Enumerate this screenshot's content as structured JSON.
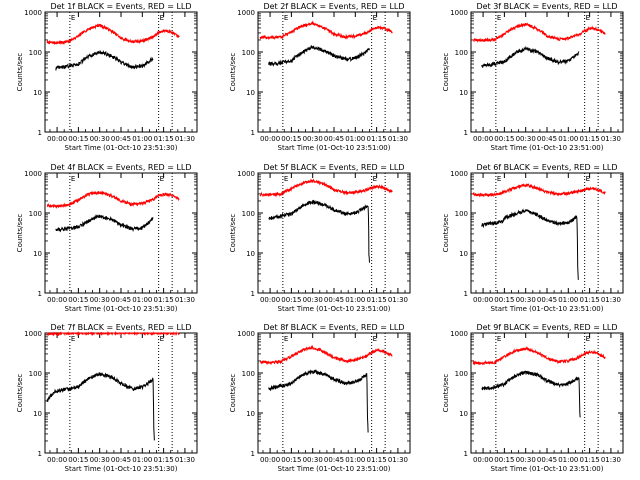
{
  "chart_data": [
    {
      "type": "line",
      "title": "Det 1f BLACK = Events, RED = LLD",
      "xlabel": "Start Time (01-Oct-10 23:51:30)",
      "ylabel": "Counts/sec",
      "y_scale": "log",
      "ylim": [
        1,
        1000
      ],
      "xlim_minutes": [
        -8.5,
        98.5
      ],
      "x_ticks": [
        "00:00",
        "00:15",
        "00:30",
        "00:45",
        "01:00",
        "01:15",
        "01:30"
      ],
      "y_ticks": [
        "1",
        "10",
        "100",
        "1000"
      ],
      "grid": false,
      "marker_text": "E",
      "vlines_minutes": [
        9,
        71.5,
        81
      ],
      "colors": {
        "events": "#000000",
        "lld": "#ff0000"
      },
      "series": [
        {
          "key": "lld",
          "color": "#ff0000",
          "x": [
            -7,
            0,
            8,
            15,
            23,
            30,
            38,
            45,
            53,
            60,
            68,
            71,
            76,
            80,
            86
          ],
          "values": [
            175,
            170,
            180,
            250,
            390,
            470,
            340,
            220,
            180,
            190,
            240,
            300,
            350,
            320,
            235
          ]
        },
        {
          "key": "events",
          "color": "#000000",
          "x": [
            -1,
            5,
            15,
            23,
            30,
            38,
            45,
            53,
            60,
            64,
            67.5
          ],
          "values": [
            40,
            42,
            50,
            80,
            100,
            80,
            55,
            42,
            45,
            55,
            70
          ]
        }
      ]
    },
    {
      "type": "line",
      "title": "Det 2f BLACK = Events, RED = LLD",
      "xlabel": "Start Time (01-Oct-10 23:51:00)",
      "ylabel": "Counts/sec",
      "y_scale": "log",
      "ylim": [
        1,
        1000
      ],
      "xlim_minutes": [
        -8.5,
        98.5
      ],
      "x_ticks": [
        "00:00",
        "00:15",
        "00:30",
        "00:45",
        "01:00",
        "01:15",
        "01:30"
      ],
      "y_ticks": [
        "1",
        "10",
        "100",
        "1000"
      ],
      "grid": false,
      "marker_text": "E",
      "vlines_minutes": [
        9,
        71.5,
        81
      ],
      "colors": {
        "events": "#000000",
        "lld": "#ff0000"
      },
      "series": [
        {
          "key": "lld",
          "color": "#ff0000",
          "x": [
            -7,
            0,
            8,
            15,
            23,
            30,
            38,
            45,
            53,
            60,
            68,
            71,
            76,
            80,
            86
          ],
          "values": [
            230,
            230,
            235,
            320,
            450,
            520,
            400,
            280,
            240,
            250,
            300,
            360,
            420,
            390,
            320
          ]
        },
        {
          "key": "events",
          "color": "#000000",
          "x": [
            -1,
            5,
            15,
            23,
            30,
            38,
            45,
            53,
            60,
            64,
            67.5,
            70
          ],
          "values": [
            50,
            52,
            60,
            100,
            130,
            110,
            80,
            65,
            70,
            85,
            100,
            120
          ]
        }
      ]
    },
    {
      "type": "line",
      "title": "Det 3f BLACK = Events, RED = LLD",
      "xlabel": "Start Time (01-Oct-10 23:51:00)",
      "ylabel": "Counts/sec",
      "y_scale": "log",
      "ylim": [
        1,
        1000
      ],
      "xlim_minutes": [
        -8.5,
        98.5
      ],
      "x_ticks": [
        "00:00",
        "00:15",
        "00:30",
        "00:45",
        "01:00",
        "01:15",
        "01:30"
      ],
      "y_ticks": [
        "1",
        "10",
        "100",
        "1000"
      ],
      "grid": false,
      "marker_text": "E",
      "vlines_minutes": [
        9,
        71.5,
        81
      ],
      "colors": {
        "events": "#000000",
        "lld": "#ff0000"
      },
      "series": [
        {
          "key": "lld",
          "color": "#ff0000",
          "x": [
            -7,
            0,
            8,
            15,
            23,
            30,
            38,
            45,
            53,
            60,
            68,
            71,
            76,
            80,
            86
          ],
          "values": [
            200,
            195,
            205,
            280,
            420,
            500,
            380,
            250,
            210,
            220,
            270,
            330,
            400,
            370,
            290
          ]
        },
        {
          "key": "events",
          "color": "#000000",
          "x": [
            -1,
            5,
            15,
            23,
            30,
            38,
            45,
            53,
            60,
            64,
            67.5
          ],
          "values": [
            45,
            48,
            58,
            95,
            120,
            100,
            70,
            55,
            60,
            75,
            95
          ]
        }
      ]
    },
    {
      "type": "line",
      "title": "Det 4f BLACK = Events, RED = LLD",
      "xlabel": "Start Time (01-Oct-10 23:51:30)",
      "ylabel": "Counts/sec",
      "y_scale": "log",
      "ylim": [
        1,
        1000
      ],
      "xlim_minutes": [
        -8.5,
        98.5
      ],
      "x_ticks": [
        "00:00",
        "00:15",
        "00:30",
        "00:45",
        "01:00",
        "01:15",
        "01:30"
      ],
      "y_ticks": [
        "1",
        "10",
        "100",
        "1000"
      ],
      "grid": false,
      "marker_text": "E",
      "vlines_minutes": [
        9,
        71.5,
        81
      ],
      "colors": {
        "events": "#000000",
        "lld": "#ff0000"
      },
      "series": [
        {
          "key": "lld",
          "color": "#ff0000",
          "x": [
            -7,
            0,
            8,
            15,
            23,
            30,
            38,
            45,
            53,
            60,
            68,
            71,
            76,
            80,
            86
          ],
          "values": [
            150,
            150,
            160,
            210,
            300,
            330,
            270,
            200,
            165,
            175,
            220,
            270,
            300,
            280,
            220
          ]
        },
        {
          "key": "events",
          "color": "#000000",
          "x": [
            -1,
            5,
            15,
            23,
            30,
            38,
            45,
            53,
            60,
            64,
            67.5
          ],
          "values": [
            38,
            40,
            45,
            65,
            85,
            70,
            50,
            40,
            42,
            55,
            75
          ]
        }
      ]
    },
    {
      "type": "line",
      "title": "Det 5f BLACK = Events, RED = LLD",
      "xlabel": "Start Time (01-Oct-10 23:51:00)",
      "ylabel": "Counts/sec",
      "y_scale": "log",
      "ylim": [
        1,
        1000
      ],
      "xlim_minutes": [
        -8.5,
        98.5
      ],
      "x_ticks": [
        "00:00",
        "00:15",
        "00:30",
        "00:45",
        "01:00",
        "01:15",
        "01:30"
      ],
      "y_ticks": [
        "1",
        "10",
        "100",
        "1000"
      ],
      "grid": false,
      "marker_text": "E",
      "vlines_minutes": [
        9,
        71.5,
        81
      ],
      "colors": {
        "events": "#000000",
        "lld": "#ff0000"
      },
      "series": [
        {
          "key": "lld",
          "color": "#ff0000",
          "x": [
            -7,
            0,
            8,
            15,
            23,
            30,
            38,
            45,
            53,
            60,
            68,
            71,
            76,
            80,
            86
          ],
          "values": [
            290,
            285,
            300,
            400,
            560,
            640,
            520,
            380,
            320,
            330,
            380,
            420,
            460,
            430,
            340
          ]
        },
        {
          "key": "events",
          "color": "#000000",
          "x": [
            -1,
            5,
            15,
            23,
            30,
            38,
            45,
            53,
            60,
            64,
            67.5,
            69,
            69.5,
            70
          ],
          "values": [
            75,
            80,
            95,
            150,
            190,
            160,
            120,
            95,
            100,
            120,
            140,
            150,
            10,
            6
          ]
        }
      ]
    },
    {
      "type": "line",
      "title": "Det 6f BLACK = Events, RED = LLD",
      "xlabel": "Start Time (01-Oct-10 23:51:00)",
      "ylabel": "Counts/sec",
      "y_scale": "log",
      "ylim": [
        1,
        1000
      ],
      "xlim_minutes": [
        -8.5,
        98.5
      ],
      "x_ticks": [
        "00:00",
        "00:15",
        "00:30",
        "00:45",
        "01:00",
        "01:15",
        "01:30"
      ],
      "y_ticks": [
        "1",
        "10",
        "100",
        "1000"
      ],
      "grid": false,
      "marker_text": "E",
      "vlines_minutes": [
        9,
        71.5,
        81
      ],
      "colors": {
        "events": "#000000",
        "lld": "#ff0000"
      },
      "series": [
        {
          "key": "lld",
          "color": "#ff0000",
          "x": [
            -7,
            0,
            8,
            15,
            23,
            30,
            38,
            45,
            53,
            60,
            68,
            71,
            76,
            80,
            86
          ],
          "values": [
            290,
            280,
            285,
            330,
            440,
            500,
            420,
            330,
            300,
            310,
            350,
            380,
            410,
            390,
            320
          ]
        },
        {
          "key": "events",
          "color": "#000000",
          "x": [
            -1,
            5,
            14,
            15,
            23,
            30,
            38,
            45,
            53,
            60,
            64,
            66,
            66.5,
            67
          ],
          "values": [
            50,
            55,
            60,
            75,
            95,
            115,
            90,
            65,
            55,
            58,
            70,
            85,
            5,
            2
          ]
        }
      ]
    },
    {
      "type": "line",
      "title": "Det 7f BLACK = Events, RED = LLD",
      "xlabel": "Start Time (01-Oct-10 23:51:30)",
      "ylabel": "Counts/sec",
      "y_scale": "log",
      "ylim": [
        1,
        1000
      ],
      "xlim_minutes": [
        -8.5,
        98.5
      ],
      "x_ticks": [
        "00:00",
        "00:15",
        "00:30",
        "00:45",
        "01:00",
        "01:15",
        "01:30"
      ],
      "y_ticks": [
        "1",
        "10",
        "100",
        "1000"
      ],
      "grid": false,
      "marker_text": "E",
      "vlines_minutes": [
        9,
        71.5,
        81
      ],
      "colors": {
        "events": "#000000",
        "lld": "#ff0000"
      },
      "series": [
        {
          "key": "lld",
          "color": "#ff0000",
          "x": [
            -7,
            0,
            8,
            15,
            23,
            30,
            38,
            45,
            53,
            60,
            68,
            71,
            76,
            80,
            86
          ],
          "values": [
            1000,
            950,
            980,
            1000,
            1000,
            1000,
            1000,
            1000,
            1000,
            1000,
            1000,
            1000,
            1000,
            1000,
            1000
          ]
        },
        {
          "key": "events",
          "color": "#000000",
          "x": [
            -7,
            -1,
            5,
            15,
            23,
            30,
            38,
            45,
            53,
            60,
            64,
            67.5,
            68,
            68.5
          ],
          "values": [
            20,
            35,
            38,
            45,
            75,
            95,
            80,
            55,
            40,
            45,
            55,
            70,
            5,
            2
          ]
        }
      ]
    },
    {
      "type": "line",
      "title": "Det 8f BLACK = Events, RED = LLD",
      "xlabel": "Start Time (01-Oct-10 23:51:00)",
      "ylabel": "Counts/sec",
      "y_scale": "log",
      "ylim": [
        1,
        1000
      ],
      "xlim_minutes": [
        -8.5,
        98.5
      ],
      "x_ticks": [
        "00:00",
        "00:15",
        "00:30",
        "00:45",
        "01:00",
        "01:15",
        "01:30"
      ],
      "y_ticks": [
        "1",
        "10",
        "100",
        "1000"
      ],
      "grid": false,
      "marker_text": "E",
      "vlines_minutes": [
        9,
        71.5,
        81
      ],
      "colors": {
        "events": "#000000",
        "lld": "#ff0000"
      },
      "series": [
        {
          "key": "lld",
          "color": "#ff0000",
          "x": [
            -7,
            0,
            8,
            15,
            23,
            30,
            38,
            45,
            53,
            60,
            68,
            71,
            76,
            80,
            86
          ],
          "values": [
            190,
            185,
            195,
            260,
            380,
            430,
            340,
            240,
            200,
            210,
            260,
            320,
            380,
            350,
            270
          ]
        },
        {
          "key": "events",
          "color": "#000000",
          "x": [
            -1,
            5,
            15,
            23,
            30,
            38,
            45,
            53,
            60,
            64,
            67,
            68,
            68.5,
            69
          ],
          "values": [
            40,
            45,
            55,
            90,
            110,
            95,
            70,
            55,
            60,
            70,
            85,
            90,
            8,
            3
          ]
        }
      ]
    },
    {
      "type": "line",
      "title": "Det 9f BLACK = Events, RED = LLD",
      "xlabel": "Start Time (01-Oct-10 23:51:00)",
      "ylabel": "Counts/sec",
      "y_scale": "log",
      "ylim": [
        1,
        1000
      ],
      "xlim_minutes": [
        -8.5,
        98.5
      ],
      "x_ticks": [
        "00:00",
        "00:15",
        "00:30",
        "00:45",
        "01:00",
        "01:15",
        "01:30"
      ],
      "y_ticks": [
        "1",
        "10",
        "100",
        "1000"
      ],
      "grid": false,
      "marker_text": "E",
      "vlines_minutes": [
        9,
        71.5,
        81
      ],
      "colors": {
        "events": "#000000",
        "lld": "#ff0000"
      },
      "series": [
        {
          "key": "lld",
          "color": "#ff0000",
          "x": [
            -7,
            0,
            8,
            15,
            23,
            30,
            38,
            45,
            53,
            60,
            68,
            71,
            76,
            80,
            86
          ],
          "values": [
            180,
            175,
            185,
            250,
            360,
            410,
            320,
            230,
            190,
            200,
            250,
            300,
            340,
            310,
            240
          ]
        },
        {
          "key": "events",
          "color": "#000000",
          "x": [
            -1,
            5,
            15,
            23,
            30,
            38,
            45,
            53,
            60,
            64,
            67.5,
            68,
            68.5
          ],
          "values": [
            40,
            43,
            52,
            85,
            105,
            90,
            65,
            50,
            55,
            65,
            80,
            10,
            8
          ]
        }
      ]
    }
  ]
}
